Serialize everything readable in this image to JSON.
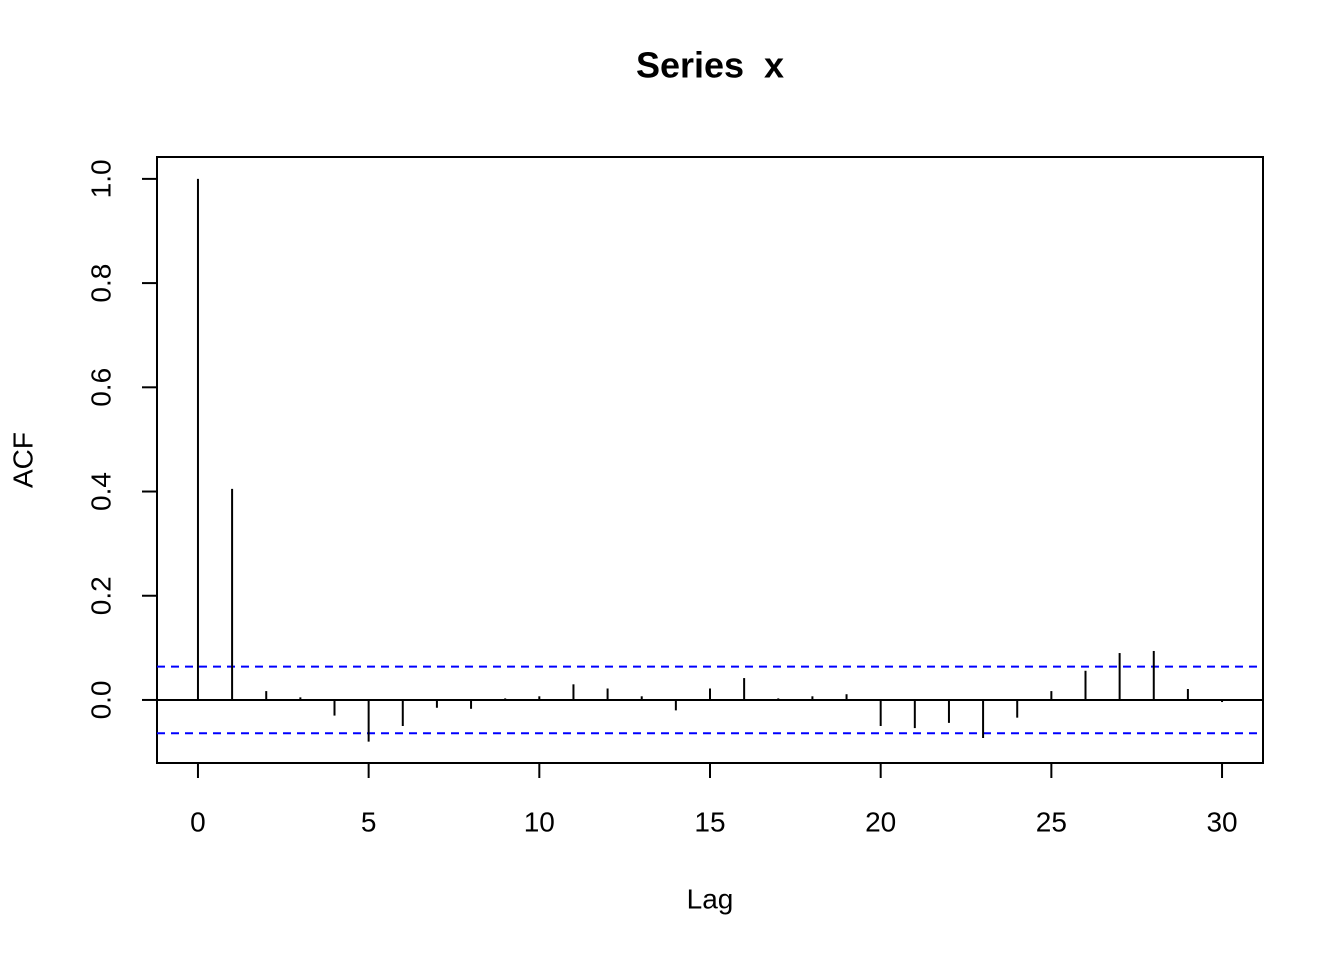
{
  "chart_data": {
    "type": "acf",
    "title": "Series  x",
    "x_label": "Lag",
    "y_label": "ACF",
    "x": [
      0,
      1,
      2,
      3,
      4,
      5,
      6,
      7,
      8,
      9,
      10,
      11,
      12,
      13,
      14,
      15,
      16,
      17,
      18,
      19,
      20,
      21,
      22,
      23,
      24,
      25,
      26,
      27,
      28,
      29,
      30
    ],
    "values": [
      1.0,
      0.405,
      0.017,
      0.005,
      -0.03,
      -0.08,
      -0.05,
      -0.015,
      -0.017,
      0.003,
      0.007,
      0.03,
      0.022,
      0.007,
      -0.02,
      0.022,
      0.042,
      0.003,
      0.007,
      0.011,
      -0.05,
      -0.054,
      -0.044,
      -0.073,
      -0.034,
      0.017,
      0.056,
      0.09,
      0.094,
      0.021,
      -0.004
    ],
    "color": "#000000",
    "xlim": [
      -1.2,
      31.2
    ],
    "xticks": [
      0,
      5,
      10,
      15,
      20,
      25,
      30
    ],
    "ylim": [
      -0.121,
      1.042
    ],
    "yticks": [
      {
        "value": 0,
        "label": "0.0"
      },
      0.2,
      0.4,
      0.6,
      0.8,
      {
        "value": 1,
        "label": "1.0"
      }
    ],
    "confidence_lines": [
      0.064,
      -0.064
    ],
    "confidence_color": "#0000ff"
  }
}
